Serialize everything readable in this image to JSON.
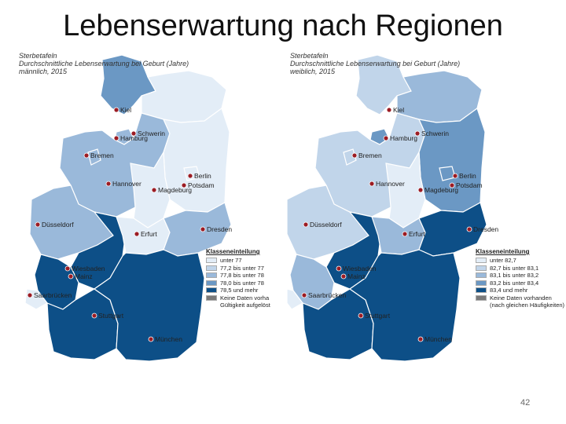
{
  "title": "Lebenserwartung nach Regionen",
  "page_number": "42",
  "colors": {
    "c1": "#e3edf7",
    "c2": "#c1d5ea",
    "c3": "#9ab9da",
    "c4": "#6b98c4",
    "c5": "#0d4f87",
    "nodata": "#7a7a7a",
    "city_dot": "#9b1c24"
  },
  "maps": [
    {
      "header": [
        "Sterbetafeln",
        "Durchschnittliche Lebenserwartung bei Geburt (Jahre)",
        "männlich, 2015"
      ],
      "legend_title": "Klasseneinteilung",
      "legend_rows": [
        {
          "label": "unter 77",
          "color": "c1"
        },
        {
          "label": "77,2 bis unter 77",
          "color": "c2"
        },
        {
          "label": "77,8 bis unter 78",
          "color": "c3"
        },
        {
          "label": "78,0 bis unter 78",
          "color": "c4"
        },
        {
          "label": "78,5 und mehr",
          "color": "c5"
        },
        {
          "label": "Keine Daten vorha",
          "color": "nodata"
        },
        {
          "label": "Gültigkeit aufgelöst",
          "color": "none"
        }
      ],
      "cities": [
        "Kiel",
        "Hamburg",
        "Bremen",
        "Hannover",
        "Berlin",
        "Potsdam",
        "Magdeburg",
        "Düsseldorf",
        "Erfurt",
        "Dresden",
        "Wiesbaden",
        "Mainz",
        "Saarbrücken",
        "Stuttgart",
        "München",
        "Schwerin"
      ]
    },
    {
      "header": [
        "Sterbetafeln",
        "Durchschnittliche Lebenserwartung bei Geburt (Jahre)",
        "weiblich, 2015"
      ],
      "legend_title": "Klasseneinteilung",
      "legend_rows": [
        {
          "label": "unter 82,7",
          "color": "c1"
        },
        {
          "label": "82,7 bis unter 83,1",
          "color": "c2"
        },
        {
          "label": "83,1 bis unter 83,2",
          "color": "c3"
        },
        {
          "label": "83,2 bis unter 83,4",
          "color": "c4"
        },
        {
          "label": "83,4 und mehr",
          "color": "c5"
        },
        {
          "label": "Keine Daten vorhanden",
          "color": "nodata"
        },
        {
          "label": "(nach gleichen Häufigkeiten)",
          "color": "none"
        }
      ],
      "cities": [
        "Kiel",
        "Hamburg",
        "Bremen",
        "Hannover",
        "Berlin",
        "Potsdam",
        "Magdeburg",
        "Düsseldorf",
        "Erfurt",
        "Dresden",
        "Wiesbaden",
        "Mainz",
        "Saarbrücken",
        "Stuttgart",
        "München",
        "Schwerin"
      ]
    }
  ]
}
